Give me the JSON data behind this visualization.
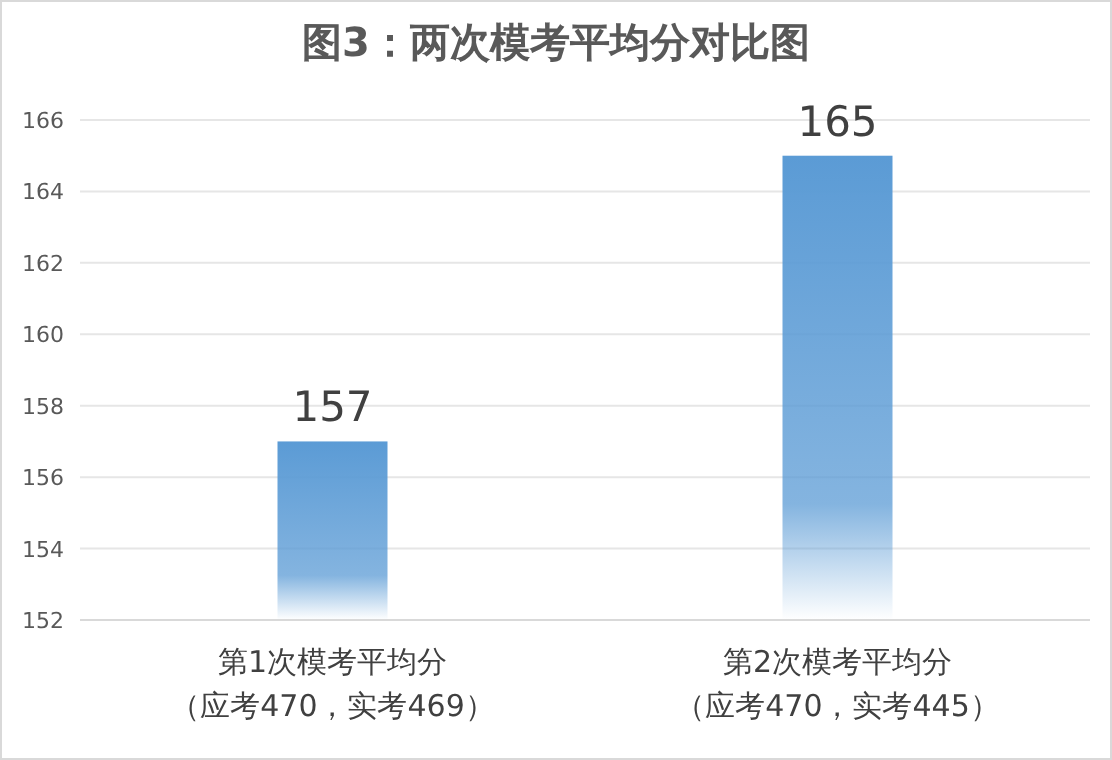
{
  "chart_data": {
    "type": "bar",
    "title": "图3：两次模考平均分对比图",
    "categories": [
      "第1次模考平均分（应考470，实考469）",
      "第2次模考平均分（应考470，实考445）"
    ],
    "values": [
      157,
      165
    ],
    "color": "#5b9bd5",
    "data_labels": true,
    "grid": "y",
    "ylim": [
      152,
      166
    ],
    "yticks": [
      152,
      154,
      156,
      158,
      160,
      162,
      164,
      166
    ]
  }
}
